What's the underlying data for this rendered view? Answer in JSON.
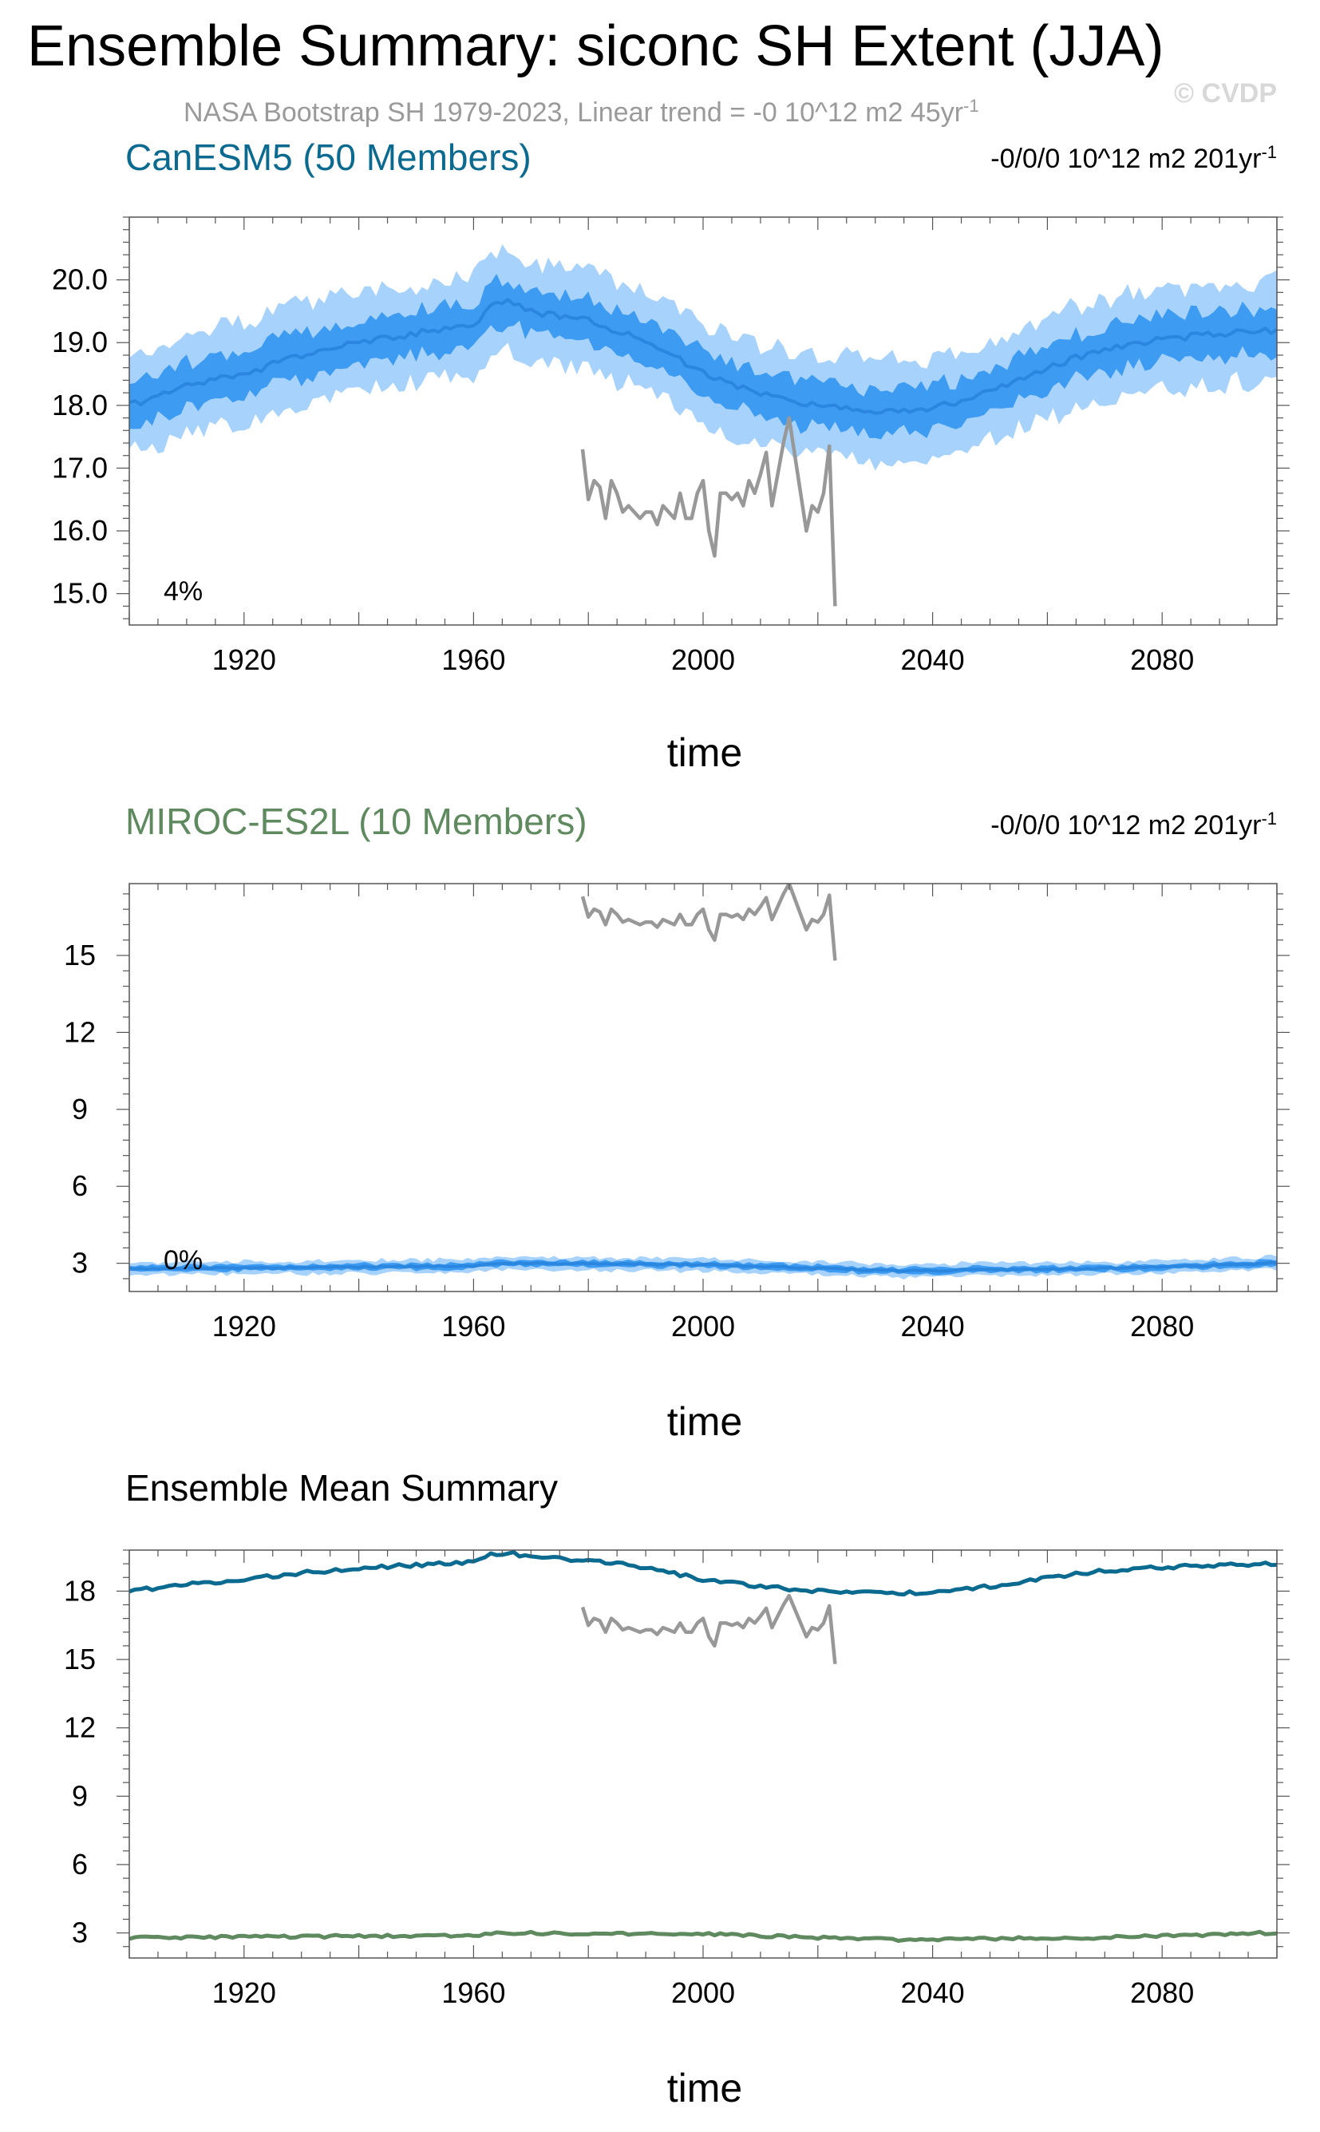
{
  "header": {
    "title": "Ensemble Summary: siconc SH Extent (JJA)",
    "subtitle_main": "NASA Bootstrap SH 1979-2023, Linear trend = -0 10^12 m2 45yr",
    "subtitle_sup": "-1",
    "watermark": "© CVDP"
  },
  "colors": {
    "canesm_title": "#0b6a8f",
    "miroc_title": "#5f8a5f",
    "band_light": "#a6d2fb",
    "band_dark": "#3d9cf2",
    "member_mean": "#2a86de",
    "obs": "#989898",
    "ens_mean_canesm": "#0b6a8f",
    "ens_mean_miroc": "#5f8a5f"
  },
  "chart_data": [
    {
      "type": "line",
      "title": "CanESM5 (50 Members)",
      "trend_text": "-0/0/0 10^12 m2 201yr",
      "trend_sup": "-1",
      "annotation": "4%",
      "xlabel": "time",
      "ylabel": "",
      "xlim": [
        1900,
        2100
      ],
      "ylim": [
        14.5,
        21.0
      ],
      "xticks": [
        1920,
        1960,
        2000,
        2040,
        2080
      ],
      "yticks": [
        15.0,
        16.0,
        17.0,
        18.0,
        19.0,
        20.0
      ],
      "ytick_labels": [
        "15.0",
        "16.0",
        "17.0",
        "18.0",
        "19.0",
        "20.0"
      ],
      "ensemble_mean": {
        "x": [
          1900,
          1910,
          1920,
          1930,
          1940,
          1950,
          1960,
          1963,
          1966,
          1970,
          1980,
          1990,
          2000,
          2010,
          2020,
          2030,
          2040,
          2050,
          2060,
          2070,
          2080,
          2090,
          2100
        ],
        "y": [
          18.0,
          18.3,
          18.5,
          18.8,
          19.0,
          19.15,
          19.25,
          19.6,
          19.7,
          19.5,
          19.35,
          19.05,
          18.5,
          18.2,
          18.0,
          17.9,
          17.95,
          18.2,
          18.6,
          18.9,
          19.05,
          19.15,
          19.2
        ]
      },
      "band_inner_halfwidth": 0.35,
      "band_outer_halfwidth": 0.8,
      "observations": {
        "x": [
          1979,
          1980,
          1981,
          1982,
          1983,
          1984,
          1985,
          1986,
          1987,
          1988,
          1989,
          1990,
          1991,
          1992,
          1993,
          1994,
          1995,
          1996,
          1997,
          1998,
          1999,
          2000,
          2001,
          2002,
          2003,
          2004,
          2005,
          2006,
          2007,
          2008,
          2009,
          2010,
          2011,
          2012,
          2013,
          2014,
          2015,
          2016,
          2017,
          2018,
          2019,
          2020,
          2021,
          2022,
          2023
        ],
        "y": [
          17.3,
          16.5,
          16.8,
          16.7,
          16.2,
          16.8,
          16.6,
          16.3,
          16.4,
          16.3,
          16.2,
          16.3,
          16.3,
          16.1,
          16.4,
          16.3,
          16.2,
          16.6,
          16.2,
          16.2,
          16.6,
          16.8,
          16.0,
          15.6,
          16.6,
          16.6,
          16.5,
          16.6,
          16.4,
          16.8,
          16.6,
          16.9,
          17.25,
          16.4,
          16.9,
          17.4,
          17.8,
          17.2,
          16.6,
          16.0,
          16.4,
          16.3,
          16.6,
          17.35,
          14.8
        ]
      }
    },
    {
      "type": "line",
      "title": "MIROC-ES2L (10 Members)",
      "trend_text": "-0/0/0 10^12 m2 201yr",
      "trend_sup": "-1",
      "annotation": "0%",
      "xlabel": "time",
      "ylabel": "",
      "xlim": [
        1900,
        2100
      ],
      "ylim": [
        1.9,
        17.8
      ],
      "xticks": [
        1920,
        1960,
        2000,
        2040,
        2080
      ],
      "yticks": [
        3,
        6,
        9,
        12,
        15
      ],
      "ytick_labels": [
        "3",
        "6",
        "9",
        "12",
        "15"
      ],
      "ensemble_mean": {
        "x": [
          1900,
          1920,
          1940,
          1960,
          1965,
          1980,
          2000,
          2020,
          2035,
          2050,
          2070,
          2090,
          2100
        ],
        "y": [
          2.78,
          2.82,
          2.86,
          2.9,
          3.0,
          2.98,
          2.95,
          2.8,
          2.7,
          2.75,
          2.8,
          2.92,
          3.02
        ]
      },
      "band_inner_halfwidth": 0.12,
      "band_outer_halfwidth": 0.25
    },
    {
      "type": "line",
      "title": "Ensemble Mean Summary",
      "xlabel": "time",
      "ylabel": "",
      "xlim": [
        1900,
        2100
      ],
      "ylim": [
        1.9,
        19.8
      ],
      "xticks": [
        1920,
        1960,
        2000,
        2040,
        2080
      ],
      "yticks": [
        3,
        6,
        9,
        12,
        15,
        18
      ],
      "ytick_labels": [
        "3",
        "6",
        "9",
        "12",
        "15",
        "18"
      ],
      "series": [
        {
          "name": "CanESM5",
          "ref": "chart_data.0.ensemble_mean"
        },
        {
          "name": "MIROC-ES2L",
          "ref": "chart_data.1.ensemble_mean"
        },
        {
          "name": "NASA Bootstrap SH",
          "ref": "chart_data.0.observations"
        }
      ]
    }
  ],
  "xtick_labels": [
    "1920",
    "1960",
    "2000",
    "2040",
    "2080"
  ]
}
